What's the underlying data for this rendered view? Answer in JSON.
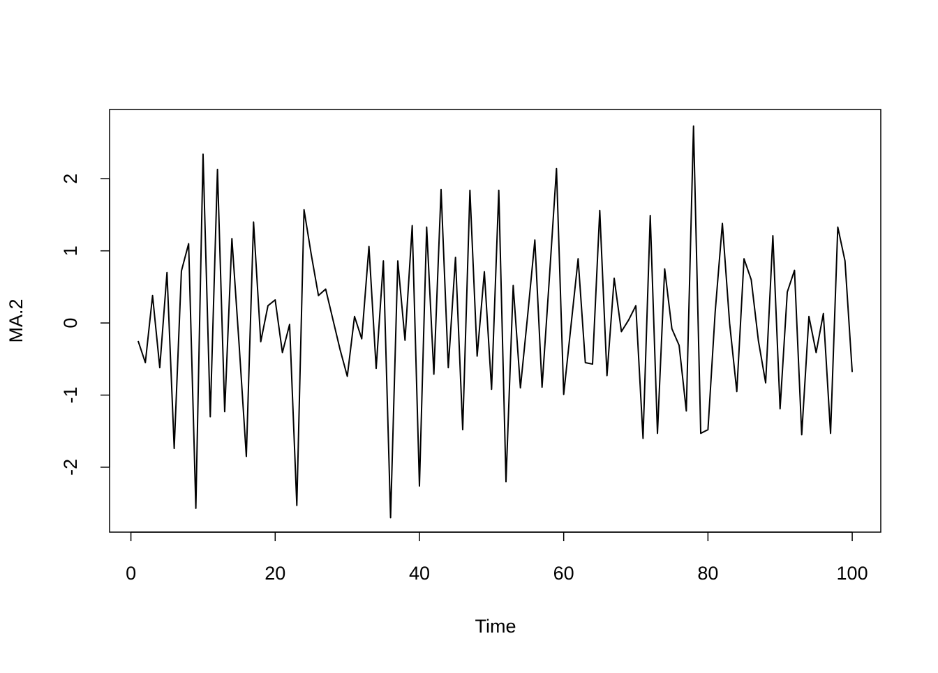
{
  "chart_data": {
    "type": "line",
    "xlabel": "Time",
    "ylabel": "MA.2",
    "x": [
      1,
      2,
      3,
      4,
      5,
      6,
      7,
      8,
      9,
      10,
      11,
      12,
      13,
      14,
      15,
      16,
      17,
      18,
      19,
      20,
      21,
      22,
      23,
      24,
      25,
      26,
      27,
      28,
      29,
      30,
      31,
      32,
      33,
      34,
      35,
      36,
      37,
      38,
      39,
      40,
      41,
      42,
      43,
      44,
      45,
      46,
      47,
      48,
      49,
      50,
      51,
      52,
      53,
      54,
      55,
      56,
      57,
      58,
      59,
      60,
      61,
      62,
      63,
      64,
      65,
      66,
      67,
      68,
      69,
      70,
      71,
      72,
      73,
      74,
      75,
      76,
      77,
      78,
      79,
      80,
      81,
      82,
      83,
      84,
      85,
      86,
      87,
      88,
      89,
      90,
      91,
      92,
      93,
      94,
      95,
      96,
      97,
      98,
      99,
      100
    ],
    "series": [
      {
        "name": "MA.2",
        "color": "#000000",
        "values": [
          -0.25,
          -0.55,
          0.38,
          -0.62,
          0.7,
          -1.74,
          0.72,
          1.1,
          -2.57,
          2.34,
          -1.3,
          2.13,
          -1.23,
          1.17,
          -0.3,
          -1.85,
          1.4,
          -0.26,
          0.24,
          0.32,
          -0.41,
          -0.02,
          -2.53,
          1.57,
          0.95,
          0.38,
          0.47,
          0.05,
          -0.37,
          -0.74,
          0.09,
          -0.22,
          1.06,
          -0.63,
          0.86,
          -2.7,
          0.86,
          -0.24,
          1.35,
          -2.26,
          1.33,
          -0.71,
          1.85,
          -0.62,
          0.91,
          -1.48,
          1.84,
          -0.46,
          0.71,
          -0.92,
          1.84,
          -2.2,
          0.52,
          -0.9,
          0.1,
          1.15,
          -0.89,
          0.6,
          2.14,
          -0.99,
          -0.05,
          0.89,
          -0.55,
          -0.57,
          1.56,
          -0.73,
          0.62,
          -0.12,
          0.04,
          0.24,
          -1.6,
          1.49,
          -1.53,
          0.75,
          -0.08,
          -0.31,
          -1.22,
          2.73,
          -1.53,
          -1.48,
          0.15,
          1.38,
          0.0,
          -0.95,
          0.89,
          0.6,
          -0.25,
          -0.83,
          1.21,
          -1.19,
          0.43,
          0.73,
          -1.55,
          0.09,
          -0.41,
          0.13,
          -1.53,
          1.33,
          0.86,
          -0.68
        ]
      }
    ],
    "xlim": [
      -2.96,
      103.96
    ],
    "xticks": [
      0,
      20,
      40,
      60,
      80,
      100
    ],
    "ylim": [
      -2.9,
      2.96
    ],
    "yticks": [
      -2,
      -1,
      0,
      1,
      2
    ],
    "grid": false
  }
}
